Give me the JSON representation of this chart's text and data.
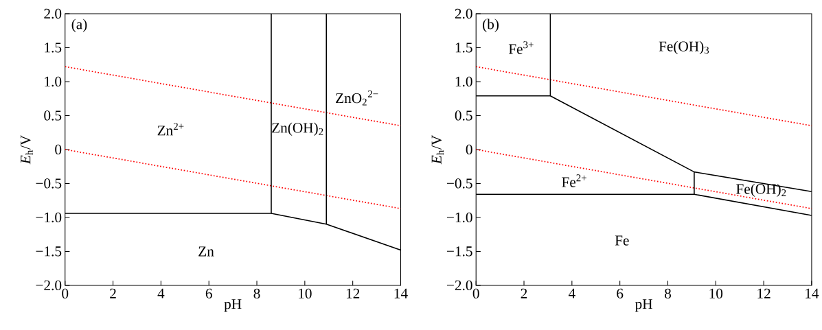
{
  "chart_data": [
    {
      "type": "line",
      "xlabel": "pH",
      "ylabel": "*E*$_{h}$/V",
      "xlim": [
        0,
        14
      ],
      "ylim": [
        -2,
        2
      ],
      "xticks": [
        0,
        2,
        4,
        6,
        8,
        10,
        12,
        14
      ],
      "yticks": [
        {
          "value": -2,
          "label": "−2.0"
        },
        {
          "value": -1.5,
          "label": "−1.5"
        },
        {
          "value": -1,
          "label": "−1.0"
        },
        {
          "value": -0.5,
          "label": "−0.5"
        },
        0,
        {
          "value": 0.5,
          "label": "0.5"
        },
        {
          "value": 1,
          "label": "1.0"
        },
        {
          "value": 1.5,
          "label": "1.5"
        },
        {
          "value": 2,
          "label": "2.0"
        }
      ],
      "series": [
        {
          "color": "#ff0000",
          "line_style": "dotted",
          "x": [
            0,
            14
          ],
          "values": [
            1.22,
            0.35
          ]
        },
        {
          "color": "#ff0000",
          "line_style": "dotted",
          "x": [
            0,
            14
          ],
          "values": [
            0,
            -0.87
          ]
        },
        {
          "color": "#000000",
          "line_style": "solid",
          "x": [
            0,
            8.6,
            10.9,
            14
          ],
          "values": [
            -0.94,
            -0.94,
            -1.1,
            -1.48
          ]
        },
        {
          "color": "#000000",
          "line_style": "solid",
          "x": [
            8.6,
            8.6
          ],
          "values": [
            -0.94,
            2
          ]
        },
        {
          "color": "#000000",
          "line_style": "solid",
          "x": [
            10.9,
            10.9
          ],
          "values": [
            -1.1,
            2
          ]
        }
      ],
      "annotations": [
        "(a)",
        "Zn$^{2+}$",
        "Zn(OH)$_{2}$",
        "ZnO$_{2}$$^{2−}$",
        "Zn"
      ]
    },
    {
      "type": "line",
      "xlabel": "pH",
      "ylabel": "*E*$_{h}$/V",
      "xlim": [
        0,
        14
      ],
      "ylim": [
        -2,
        2
      ],
      "xticks": [
        0,
        2,
        4,
        6,
        8,
        10,
        12,
        14
      ],
      "yticks": [
        {
          "value": -2,
          "label": "−2.0"
        },
        {
          "value": -1.5,
          "label": "−1.5"
        },
        {
          "value": -1,
          "label": "−1.0"
        },
        {
          "value": -0.5,
          "label": "−0.5"
        },
        0,
        {
          "value": 0.5,
          "label": "0.5"
        },
        {
          "value": 1,
          "label": "1.0"
        },
        {
          "value": 1.5,
          "label": "1.5"
        },
        {
          "value": 2,
          "label": "2.0"
        }
      ],
      "series": [
        {
          "color": "#ff0000",
          "line_style": "dotted",
          "x": [
            0,
            14
          ],
          "values": [
            1.22,
            0.35
          ]
        },
        {
          "color": "#ff0000",
          "line_style": "dotted",
          "x": [
            0,
            14
          ],
          "values": [
            0,
            -0.87
          ]
        },
        {
          "color": "#000000",
          "line_style": "solid",
          "x": [
            0,
            3.1,
            9.1,
            14
          ],
          "values": [
            0.79,
            0.79,
            -0.33,
            -0.62
          ]
        },
        {
          "color": "#000000",
          "line_style": "solid",
          "x": [
            3.1,
            3.1
          ],
          "values": [
            0.79,
            2
          ]
        },
        {
          "color": "#000000",
          "line_style": "solid",
          "x": [
            0,
            9.1,
            14
          ],
          "values": [
            -0.66,
            -0.66,
            -0.97
          ]
        },
        {
          "color": "#000000",
          "line_style": "solid",
          "x": [
            9.1,
            9.1
          ],
          "values": [
            -0.66,
            -0.33
          ]
        }
      ],
      "annotations": [
        "(b)",
        "Fe$^{3+}$",
        "Fe(OH)$_{3}$",
        "Fe$^{2+}$",
        "Fe(OH)$_{2}$",
        "Fe"
      ]
    }
  ]
}
